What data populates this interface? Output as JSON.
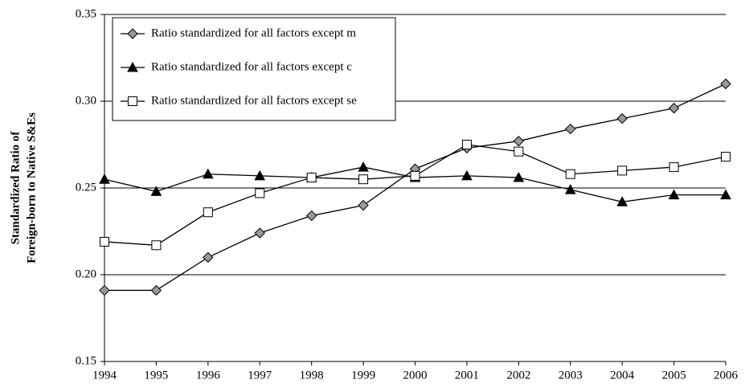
{
  "chart_data": {
    "type": "line",
    "ylabel": [
      "Standardized Ratio of",
      "Foreign-born to Native S&Es"
    ],
    "categories": [
      "1994",
      "1995",
      "1996",
      "1997",
      "1998",
      "1999",
      "2000",
      "2001",
      "2002",
      "2003",
      "2004",
      "2005",
      "2006"
    ],
    "ylim": [
      0.15,
      0.35
    ],
    "yticks": [
      {
        "value": 0.15,
        "label": "0.15"
      },
      {
        "value": 0.2,
        "label": "0.20"
      },
      {
        "value": 0.25,
        "label": "0.25"
      },
      {
        "value": 0.3,
        "label": "0.30"
      },
      {
        "value": 0.35,
        "label": "0.35"
      }
    ],
    "grid": true,
    "legend": "upper left",
    "series": [
      {
        "name": "Ratio standardized for all factors except m",
        "color": "#999999",
        "marker": "diamond",
        "values": [
          0.191,
          0.191,
          0.21,
          0.224,
          0.234,
          0.24,
          0.261,
          0.273,
          0.277,
          0.284,
          0.29,
          0.296,
          0.31
        ]
      },
      {
        "name": "Ratio standardized for all factors except c",
        "color": "#000000",
        "marker": "triangle",
        "values": [
          0.255,
          0.248,
          0.258,
          0.257,
          0.256,
          0.262,
          0.256,
          0.257,
          0.256,
          0.249,
          0.242,
          0.246,
          0.246
        ]
      },
      {
        "name": "Ratio standardized for all factors except se",
        "color": "#ffffff",
        "marker": "square",
        "values": [
          0.219,
          0.217,
          0.236,
          0.247,
          0.256,
          0.255,
          0.257,
          0.275,
          0.271,
          0.258,
          0.26,
          0.262,
          0.268
        ]
      }
    ]
  }
}
